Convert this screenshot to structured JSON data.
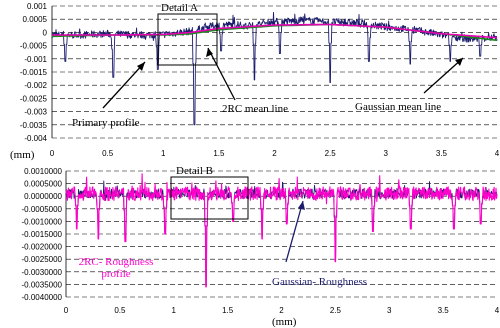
{
  "chart_data": [
    {
      "type": "line",
      "title": "",
      "unit_label": "(mm)",
      "xlim": [
        0,
        4
      ],
      "ylim": [
        -0.004,
        0.001
      ],
      "grid": "dashed",
      "x_ticks": [
        0,
        0.5,
        1,
        1.5,
        2,
        2.5,
        3,
        3.5,
        4
      ],
      "x_tick_labels": [
        "0",
        "0.5",
        "1",
        "1.5",
        "2",
        "2.5",
        "3",
        "3.5",
        "4"
      ],
      "y_ticks": [
        0.001,
        0.0005,
        0,
        -0.0005,
        -0.001,
        -0.0015,
        -0.002,
        -0.0025,
        -0.003,
        -0.0035,
        -0.004
      ],
      "y_tick_labels": [
        "0.001",
        "0.0005",
        "0",
        "-0.0005",
        "-0.001",
        "-0.0015",
        "-0.002",
        "-0.0025",
        "-0.003",
        "-0.0035",
        "-0.004"
      ],
      "series": [
        {
          "name": "Primary profile",
          "color": "#1c1c6e",
          "x": [
            0,
            0.25,
            0.5,
            0.75,
            1,
            1.25,
            1.5,
            1.75,
            2,
            2.25,
            2.5,
            2.75,
            3,
            3.25,
            3.5,
            3.75,
            4
          ],
          "y": [
            -0.0001,
            -0.0001,
            -5e-05,
            -0.0001,
            -8e-05,
            5e-05,
            0.0003,
            0.00025,
            0.0004,
            0.00045,
            0.0004,
            0.00035,
            0.0002,
            0.0001,
            -0.0001,
            -0.00025,
            -0.0002
          ],
          "valleys": [
            {
              "x": 0.12,
              "y": -0.0011
            },
            {
              "x": 0.55,
              "y": -0.0017
            },
            {
              "x": 0.95,
              "y": -0.0014
            },
            {
              "x": 1.28,
              "y": -0.0035
            },
            {
              "x": 1.52,
              "y": -0.0007
            },
            {
              "x": 1.82,
              "y": -0.0018
            },
            {
              "x": 2.05,
              "y": -0.0008
            },
            {
              "x": 2.5,
              "y": -0.0019
            },
            {
              "x": 2.85,
              "y": -0.0011
            },
            {
              "x": 3.22,
              "y": -0.0012
            },
            {
              "x": 3.58,
              "y": -0.0011
            },
            {
              "x": 3.85,
              "y": -0.0009
            }
          ]
        },
        {
          "name": "2RC mean line",
          "color": "#1a8a1a",
          "x": [
            0,
            0.5,
            1,
            1.25,
            1.5,
            2,
            2.5,
            3,
            3.5,
            4
          ],
          "y": [
            -0.00015,
            -0.0001,
            -0.0001,
            -5e-05,
            0.0001,
            0.00025,
            0.0003,
            0.0002,
            -5e-05,
            -0.0003
          ]
        },
        {
          "name": "Gaussian mean line",
          "color": "#e600b4",
          "x": [
            0,
            0.5,
            1,
            1.25,
            1.5,
            2,
            2.5,
            3,
            3.5,
            4
          ],
          "y": [
            -0.0001,
            -0.0001,
            -8e-05,
            0.0,
            0.00015,
            0.00028,
            0.0003,
            0.0002,
            -5e-05,
            -0.0002
          ]
        }
      ],
      "annotations": [
        "Detail A",
        "Primary profile",
        "2RC mean line",
        "Gaussian mean line"
      ]
    },
    {
      "type": "line",
      "title": "",
      "xlabel": "(mm)",
      "unit_label": "(mm)",
      "xlim": [
        0,
        4
      ],
      "ylim": [
        -0.004,
        0.001
      ],
      "grid": "dashed",
      "x_ticks": [
        0,
        0.5,
        1,
        1.5,
        2,
        2.5,
        3,
        3.5,
        4
      ],
      "x_tick_labels": [
        "0",
        "0.5",
        "1",
        "1.5",
        "2",
        "2.5",
        "3",
        "3.5",
        "4"
      ],
      "y_ticks": [
        0.001,
        0.0005,
        0,
        -0.0005,
        -0.001,
        -0.0015,
        -0.002,
        -0.0025,
        -0.003,
        -0.0035,
        -0.004
      ],
      "y_tick_labels": [
        "0.0010000",
        "0.0005000",
        "0.0000000",
        "-0.0005000",
        "-0.0010000",
        "-0.0015000",
        "-0.0020000",
        "-0.0025000",
        "-0.0030000",
        "-0.0035000",
        "-0.0040000"
      ],
      "series": [
        {
          "name": "Gaussian- Roughness",
          "color": "#1c1c6e",
          "x": [
            0,
            4
          ],
          "y": [
            0.0001,
            0.0001
          ],
          "valleys": [
            {
              "x": 0.1,
              "y": -0.0012
            },
            {
              "x": 0.3,
              "y": -0.0016
            },
            {
              "x": 0.55,
              "y": -0.0017
            },
            {
              "x": 0.92,
              "y": -0.0014
            },
            {
              "x": 1.3,
              "y": -0.0035
            },
            {
              "x": 1.55,
              "y": -0.0009
            },
            {
              "x": 1.82,
              "y": -0.0016
            },
            {
              "x": 2.05,
              "y": -0.001
            },
            {
              "x": 2.5,
              "y": -0.0024
            },
            {
              "x": 2.85,
              "y": -0.0013
            },
            {
              "x": 3.2,
              "y": -0.0012
            },
            {
              "x": 3.6,
              "y": -0.0012
            },
            {
              "x": 3.85,
              "y": -0.001
            }
          ]
        },
        {
          "name": "2RC- Roughness profile",
          "color": "#ff00cc",
          "x": [
            0,
            4
          ],
          "y": [
            0.0001,
            0.0001
          ],
          "valleys": [
            {
              "x": 0.1,
              "y": -0.0013
            },
            {
              "x": 0.3,
              "y": -0.0017
            },
            {
              "x": 0.55,
              "y": -0.0018
            },
            {
              "x": 0.92,
              "y": -0.0015
            },
            {
              "x": 1.3,
              "y": -0.0036
            },
            {
              "x": 1.55,
              "y": -0.001
            },
            {
              "x": 1.82,
              "y": -0.0017
            },
            {
              "x": 2.05,
              "y": -0.0011
            },
            {
              "x": 2.5,
              "y": -0.0026
            },
            {
              "x": 2.85,
              "y": -0.0014
            },
            {
              "x": 3.2,
              "y": -0.0013
            },
            {
              "x": 3.6,
              "y": -0.0013
            },
            {
              "x": 3.85,
              "y": -0.0011
            }
          ]
        }
      ],
      "annotations": [
        "Detail B",
        "2RC- Roughness profile",
        "Gaussian- Roughness"
      ]
    }
  ],
  "chart_a": {
    "detail_label": "Detail A",
    "label_primary": "Primary profile",
    "label_2rc": "2RC mean line",
    "label_gauss": "Gaussian mean line",
    "unit": "(mm)"
  },
  "chart_b": {
    "detail_label": "Detail B",
    "label_2rc_line1": "2RC- Roughness",
    "label_2rc_line2": "profile",
    "label_gauss": "Gaussian- Roughness",
    "xlabel": "(mm)"
  }
}
